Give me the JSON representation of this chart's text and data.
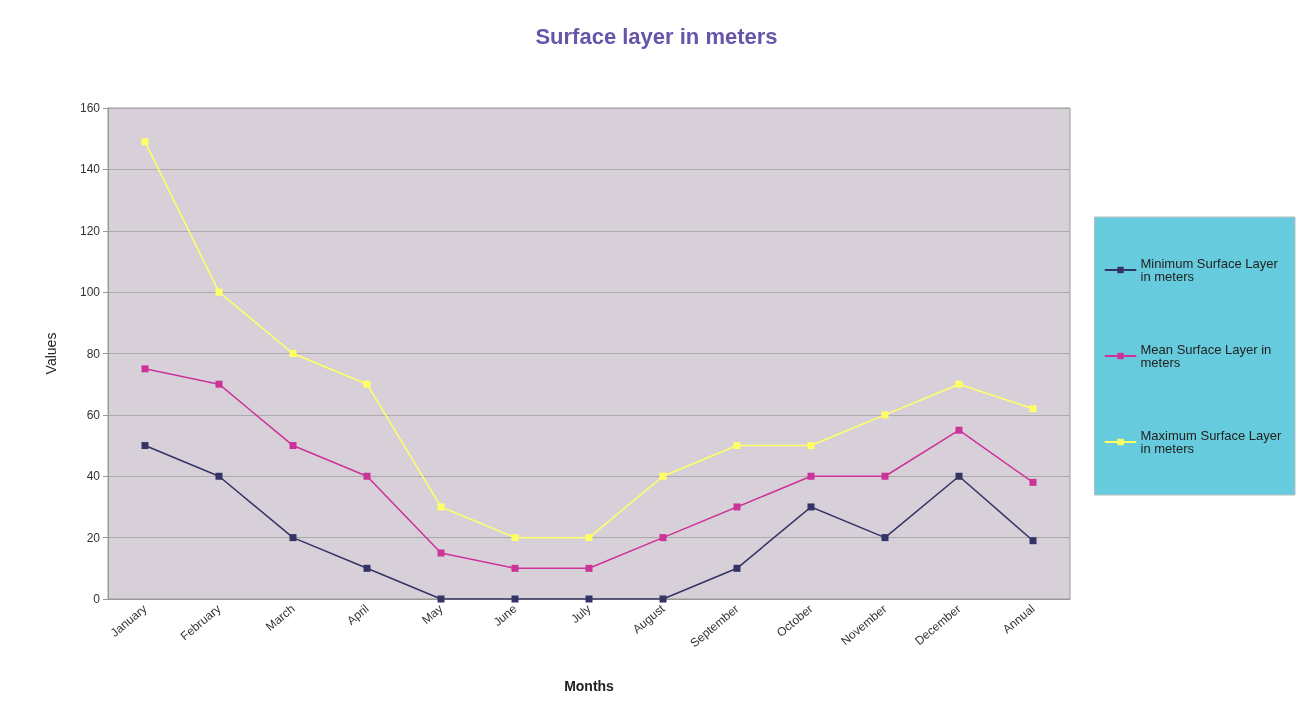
{
  "chart_data": {
    "type": "line",
    "title": "Surface layer in meters",
    "xlabel": "Months",
    "ylabel": "Values",
    "categories": [
      "January",
      "February",
      "March",
      "April",
      "May",
      "June",
      "July",
      "August",
      "September",
      "October",
      "November",
      "December",
      "Annual"
    ],
    "series": [
      {
        "name": "Minimum Surface Layer in meters",
        "color": "#333366",
        "values": [
          50,
          40,
          20,
          10,
          0,
          0,
          0,
          0,
          10,
          30,
          20,
          40,
          19
        ]
      },
      {
        "name": "Mean Surface Layer in meters",
        "color": "#cc3399",
        "values": [
          75,
          70,
          50,
          40,
          15,
          10,
          10,
          20,
          30,
          40,
          40,
          55,
          38
        ]
      },
      {
        "name": "Maximum Surface Layer in meters",
        "color": "#ffff66",
        "values": [
          149,
          100,
          80,
          70,
          30,
          20,
          20,
          40,
          50,
          50,
          60,
          70,
          62
        ]
      }
    ],
    "ylim": [
      0,
      160
    ],
    "yticks": [
      0,
      20,
      40,
      60,
      80,
      100,
      120,
      140,
      160
    ],
    "grid": "y",
    "legend": "right",
    "marker": "square",
    "line_style": "solid"
  }
}
